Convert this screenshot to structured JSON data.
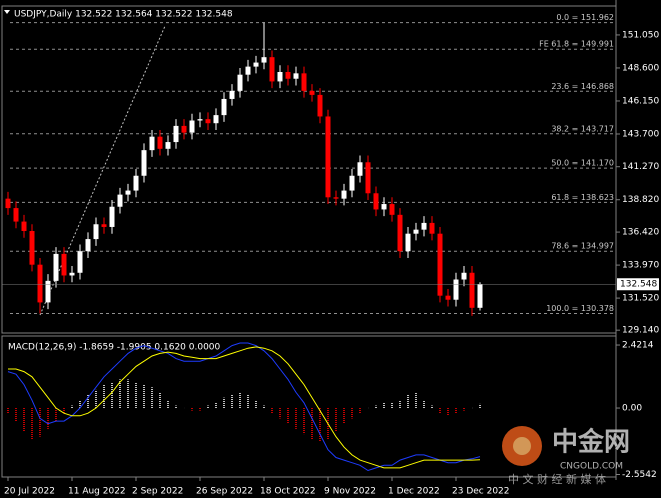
{
  "chart_data": [
    {
      "type": "candlestick",
      "title": "USDJPY,Daily  132.522 132.564 132.522 132.548",
      "categories": [
        "20 Jul 2022",
        null,
        null,
        null,
        null,
        null,
        null,
        null,
        "11 Aug 2022",
        null,
        null,
        null,
        null,
        null,
        null,
        null,
        "2 Sep 2022",
        null,
        null,
        null,
        null,
        null,
        null,
        null,
        "26 Sep 2022",
        null,
        null,
        null,
        null,
        null,
        null,
        null,
        "18 Oct 2022",
        null,
        null,
        null,
        null,
        null,
        null,
        null,
        "9 Nov 2022",
        null,
        null,
        null,
        null,
        null,
        null,
        null,
        "1 Dec 2022",
        null,
        null,
        null,
        null,
        null,
        null,
        null,
        "23 Dec 2022",
        null,
        null,
        null
      ],
      "open": [
        138.9,
        138.2,
        137.2,
        136.5,
        134.0,
        131.2,
        132.8,
        134.8,
        133.2,
        133.4,
        135.0,
        135.9,
        137.0,
        136.8,
        138.3,
        139.2,
        139.5,
        140.6,
        142.5,
        143.5,
        142.6,
        143.1,
        144.3,
        143.8,
        144.7,
        144.8,
        144.5,
        145.1,
        146.3,
        146.9,
        148.1,
        148.7,
        149.0,
        149.4,
        147.6,
        148.3,
        147.8,
        148.2,
        146.9,
        146.6,
        145.0,
        139.0,
        138.9,
        139.5,
        140.6,
        141.6,
        139.3,
        138.1,
        138.5,
        137.7,
        135.0,
        136.3,
        136.6,
        137.1,
        136.3,
        131.7,
        131.4,
        132.9,
        133.4,
        130.8
      ],
      "high": [
        139.4,
        138.7,
        137.7,
        137.0,
        134.5,
        133.3,
        135.3,
        135.3,
        133.9,
        135.5,
        136.4,
        137.5,
        137.5,
        138.8,
        139.7,
        140.0,
        141.1,
        143.0,
        144.0,
        144.0,
        143.6,
        144.8,
        144.8,
        145.2,
        145.3,
        145.3,
        145.6,
        146.8,
        147.4,
        148.6,
        149.2,
        149.5,
        151.962,
        149.9,
        148.8,
        148.8,
        148.7,
        148.7,
        147.4,
        147.1,
        145.5,
        139.5,
        140.0,
        141.1,
        142.1,
        142.1,
        139.8,
        139.0,
        139.0,
        138.2,
        136.8,
        137.1,
        137.6,
        137.6,
        136.8,
        132.2,
        133.4,
        133.9,
        133.9,
        132.7
      ],
      "low": [
        137.7,
        136.7,
        136.0,
        133.5,
        130.378,
        130.7,
        132.3,
        132.7,
        132.7,
        132.9,
        134.5,
        135.4,
        136.3,
        136.3,
        137.8,
        138.7,
        139.0,
        140.1,
        142.0,
        142.1,
        142.1,
        142.6,
        143.3,
        143.3,
        144.2,
        144.0,
        144.0,
        144.6,
        145.8,
        146.4,
        147.6,
        148.2,
        148.5,
        147.1,
        147.1,
        147.3,
        147.3,
        146.4,
        146.1,
        144.5,
        138.5,
        138.4,
        138.4,
        139.0,
        140.1,
        138.8,
        137.6,
        137.6,
        137.2,
        134.5,
        134.5,
        135.8,
        136.1,
        135.8,
        131.2,
        130.9,
        130.9,
        132.4,
        130.2,
        130.6
      ],
      "close": [
        138.2,
        137.2,
        136.5,
        134.0,
        131.2,
        132.8,
        134.8,
        133.2,
        133.4,
        135.0,
        135.9,
        137.0,
        136.8,
        138.3,
        139.2,
        139.5,
        140.6,
        142.5,
        143.5,
        142.6,
        143.1,
        144.3,
        143.8,
        144.7,
        144.8,
        144.5,
        145.1,
        146.3,
        146.9,
        148.1,
        148.7,
        149.0,
        149.4,
        147.6,
        148.3,
        147.8,
        148.2,
        146.9,
        146.6,
        145.0,
        139.0,
        138.9,
        139.5,
        140.6,
        141.6,
        139.3,
        138.1,
        138.5,
        137.7,
        135.0,
        136.3,
        136.6,
        137.1,
        136.3,
        131.7,
        131.4,
        132.9,
        133.4,
        130.8,
        132.548
      ],
      "up_color": "#ffffff",
      "down_color": "#ff0000",
      "ylim": [
        128.93,
        152.53
      ],
      "yticks": [
        {
          "value": 151.05,
          "label": "151.050"
        },
        {
          "value": 148.6,
          "label": "148.600"
        },
        {
          "value": 146.15,
          "label": "146.150"
        },
        {
          "value": 143.7,
          "label": "143.700"
        },
        {
          "value": 141.27,
          "label": "141.270"
        },
        {
          "value": 138.82,
          "label": "138.820"
        },
        {
          "value": 136.42,
          "label": "136.420"
        },
        {
          "value": 133.97,
          "label": "133.970"
        },
        {
          "value": 131.52,
          "label": "131.520"
        },
        {
          "value": 129.14,
          "label": "129.140"
        }
      ],
      "fib_levels": [
        {
          "value": 151.962,
          "label": "0.0 = 151.962"
        },
        {
          "value": 149.991,
          "label": "FE 61.8 = 149.991"
        },
        {
          "value": 146.868,
          "label": "23.6 = 146.868"
        },
        {
          "value": 143.717,
          "label": "38.2 = 143.717"
        },
        {
          "value": 141.17,
          "label": "50.0 = 141.170"
        },
        {
          "value": 138.623,
          "label": "61.8 = 138.623"
        },
        {
          "value": 134.997,
          "label": "78.6 = 134.997"
        },
        {
          "value": 130.378,
          "label": "100.0 = 130.378"
        }
      ]
    },
    {
      "type": "macd",
      "title": "MACD(12,26,9) -1.8659 -1.9905 0.1620 0.0000",
      "ylim": [
        -2.65,
        2.73
      ],
      "yticks": [
        2.4214,
        {
          "value": 0,
          "label": "0.00"
        },
        -2.5542
      ],
      "histogram": {
        "up_color": "#ffffff",
        "down_color": "#ff0000",
        "values": [
          -0.2,
          -0.5,
          -0.9,
          -1.2,
          -1.1,
          -0.8,
          -0.5,
          -0.2,
          0.1,
          0.3,
          0.5,
          0.7,
          0.9,
          1.0,
          1.1,
          1.1,
          1.0,
          0.9,
          0.8,
          0.6,
          0.3,
          0.1,
          0.0,
          -0.1,
          -0.1,
          0.1,
          0.2,
          0.4,
          0.5,
          0.6,
          0.5,
          0.3,
          0.1,
          -0.2,
          -0.4,
          -0.6,
          -0.8,
          -1.0,
          -1.2,
          -1.3,
          -1.2,
          -0.9,
          -0.6,
          -0.4,
          -0.2,
          0.0,
          0.1,
          0.2,
          0.2,
          0.3,
          0.5,
          0.6,
          0.3,
          0.1,
          -0.2,
          -0.3,
          -0.2,
          -0.1,
          0.0,
          0.162
        ]
      },
      "series": [
        {
          "color": "#1e3cff",
          "values": [
            1.4,
            1.3,
            0.9,
            0.3,
            -0.4,
            -0.6,
            -0.5,
            -0.5,
            -0.3,
            0.0,
            0.4,
            0.8,
            1.2,
            1.5,
            1.8,
            2.1,
            2.3,
            2.4,
            2.3,
            2.2,
            2.1,
            1.9,
            1.8,
            1.8,
            1.8,
            1.9,
            2.0,
            2.2,
            2.4,
            2.5,
            2.5,
            2.4,
            2.2,
            1.9,
            1.5,
            1.1,
            0.6,
            0.2,
            -0.4,
            -1.0,
            -1.6,
            -1.9,
            -2.0,
            -2.1,
            -2.2,
            -2.4,
            -2.3,
            -2.2,
            -2.2,
            -2.0,
            -1.9,
            -1.8,
            -1.8,
            -1.9,
            -2.0,
            -2.1,
            -2.1,
            -2.0,
            -1.95,
            -1.8659
          ]
        },
        {
          "color": "#ffff00",
          "values": [
            1.5,
            1.5,
            1.4,
            1.2,
            0.8,
            0.4,
            0.0,
            -0.2,
            -0.3,
            -0.3,
            -0.2,
            0.0,
            0.3,
            0.6,
            1.0,
            1.3,
            1.6,
            1.8,
            2.0,
            2.1,
            2.15,
            2.1,
            2.0,
            1.95,
            1.9,
            1.9,
            1.9,
            2.0,
            2.1,
            2.2,
            2.3,
            2.35,
            2.3,
            2.2,
            2.0,
            1.7,
            1.3,
            0.9,
            0.4,
            -0.1,
            -0.6,
            -1.1,
            -1.5,
            -1.8,
            -2.0,
            -2.1,
            -2.2,
            -2.3,
            -2.3,
            -2.3,
            -2.2,
            -2.1,
            -2.0,
            -2.0,
            -2.0,
            -2.0,
            -2.0,
            -2.0,
            -2.0,
            -1.9905
          ]
        }
      ]
    }
  ],
  "watermark": {
    "brand": "中金网",
    "site": "CNGOLD.COM",
    "slogan": "中 文 财 经 新 媒 体"
  }
}
